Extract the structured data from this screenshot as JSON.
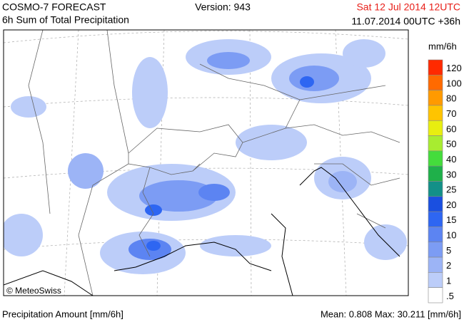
{
  "header": {
    "title": "COSMO-7 FORECAST",
    "subtitle": "6h Sum of Total Precipitation",
    "version": "Version: 943",
    "valid": "Sat 12 Jul 2014 12UTC",
    "run": "11.07.2014 00UTC +36h"
  },
  "map": {
    "credit": "© MeteoSwiss"
  },
  "legend": {
    "unit": "mm/6h",
    "levels": [
      {
        "label": "120",
        "color": "#ff2a00"
      },
      {
        "label": "100",
        "color": "#ff6a00"
      },
      {
        "label": "80",
        "color": "#ff9a00"
      },
      {
        "label": "70",
        "color": "#ffc400"
      },
      {
        "label": "60",
        "color": "#e8ee10"
      },
      {
        "label": "50",
        "color": "#a8ec30"
      },
      {
        "label": "40",
        "color": "#44dc3c"
      },
      {
        "label": "30",
        "color": "#1fb04a"
      },
      {
        "label": "25",
        "color": "#139088"
      },
      {
        "label": "20",
        "color": "#1a4fe0"
      },
      {
        "label": "15",
        "color": "#2e66f2"
      },
      {
        "label": "10",
        "color": "#5c84f2"
      },
      {
        "label": "5",
        "color": "#7c9cf4"
      },
      {
        "label": "2",
        "color": "#9cb4f6"
      },
      {
        "label": "1",
        "color": "#bccdf9"
      },
      {
        "label": ".5",
        "color": "#ffffff"
      }
    ]
  },
  "footer": {
    "left": "Precipitation Amount [mm/6h]",
    "stats": "Mean:  0.808 Max:  30.211 [mm/6h]"
  }
}
